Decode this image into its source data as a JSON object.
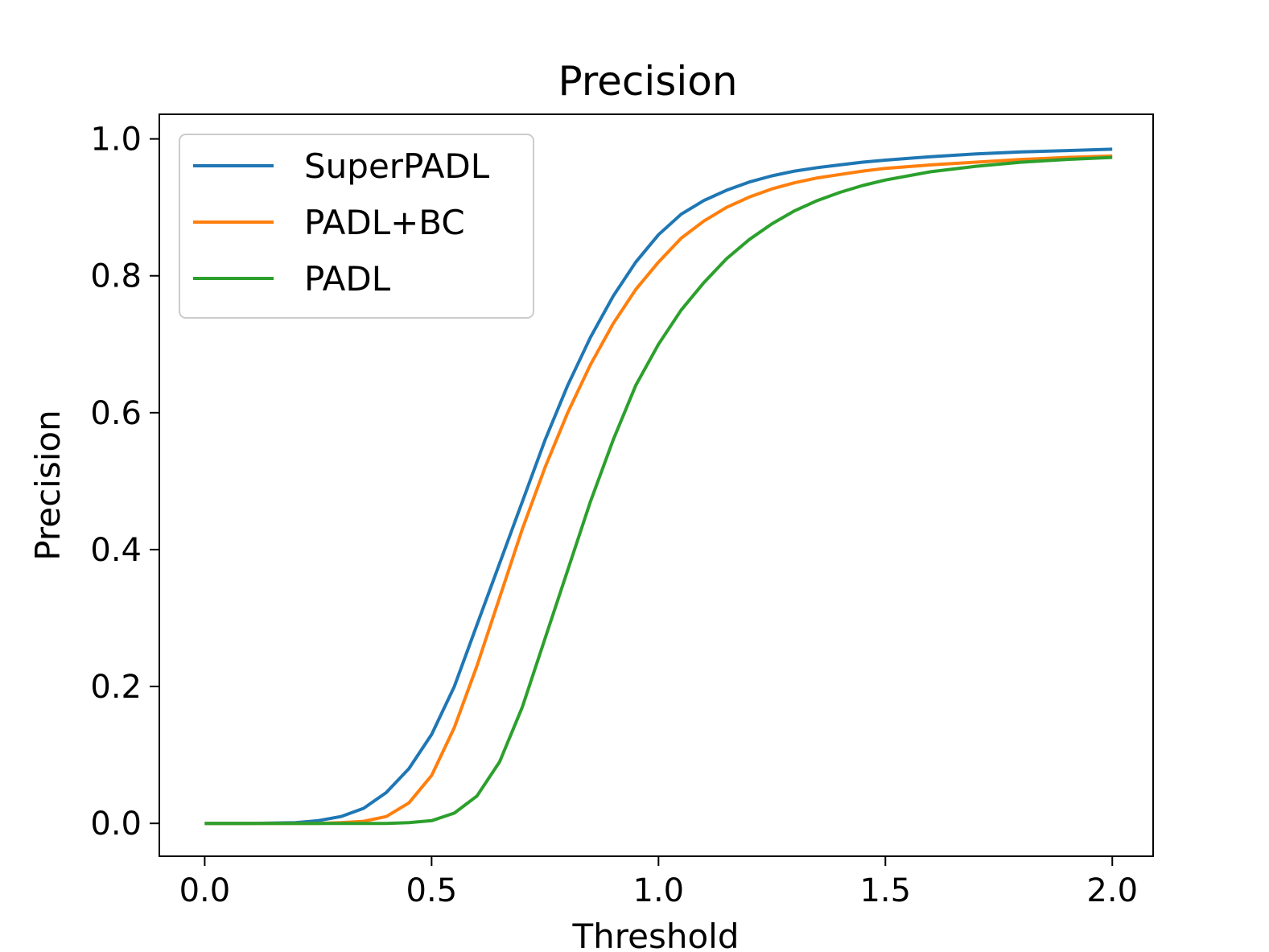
{
  "chart_data": {
    "type": "line",
    "title": "Precision",
    "xlabel": "Threshold",
    "ylabel": "Precision",
    "xlim": [
      -0.1,
      2.09
    ],
    "ylim": [
      -0.048,
      1.036
    ],
    "xticks": [
      0.0,
      0.5,
      1.0,
      1.5,
      2.0
    ],
    "xtick_labels": [
      "0.0",
      "0.5",
      "1.0",
      "1.5",
      "2.0"
    ],
    "yticks": [
      0.0,
      0.2,
      0.4,
      0.6,
      0.8,
      1.0
    ],
    "ytick_labels": [
      "0.0",
      "0.2",
      "0.4",
      "0.6",
      "0.8",
      "1.0"
    ],
    "grid": false,
    "legend_position": "top-left",
    "x": [
      0.0,
      0.1,
      0.2,
      0.25,
      0.3,
      0.35,
      0.4,
      0.45,
      0.5,
      0.55,
      0.6,
      0.65,
      0.7,
      0.75,
      0.8,
      0.85,
      0.9,
      0.95,
      1.0,
      1.05,
      1.1,
      1.15,
      1.2,
      1.25,
      1.3,
      1.35,
      1.4,
      1.45,
      1.5,
      1.6,
      1.7,
      1.8,
      1.9,
      2.0
    ],
    "series": [
      {
        "name": "SuperPADL",
        "color": "#1f77b4",
        "values": [
          0.0,
          0.0,
          0.001,
          0.004,
          0.01,
          0.022,
          0.045,
          0.08,
          0.13,
          0.2,
          0.29,
          0.38,
          0.47,
          0.56,
          0.64,
          0.71,
          0.77,
          0.82,
          0.86,
          0.89,
          0.91,
          0.925,
          0.937,
          0.946,
          0.953,
          0.958,
          0.962,
          0.966,
          0.969,
          0.974,
          0.978,
          0.981,
          0.983,
          0.985
        ]
      },
      {
        "name": "PADL+BC",
        "color": "#ff7f0e",
        "values": [
          0.0,
          0.0,
          0.0,
          0.0,
          0.001,
          0.003,
          0.01,
          0.03,
          0.07,
          0.14,
          0.23,
          0.33,
          0.43,
          0.52,
          0.6,
          0.67,
          0.73,
          0.78,
          0.82,
          0.855,
          0.88,
          0.9,
          0.915,
          0.927,
          0.936,
          0.943,
          0.948,
          0.953,
          0.957,
          0.962,
          0.966,
          0.97,
          0.973,
          0.975
        ]
      },
      {
        "name": "PADL",
        "color": "#2ca02c",
        "values": [
          0.0,
          0.0,
          0.0,
          0.0,
          0.0,
          0.0,
          0.0,
          0.001,
          0.004,
          0.015,
          0.04,
          0.09,
          0.17,
          0.27,
          0.37,
          0.47,
          0.56,
          0.64,
          0.7,
          0.75,
          0.79,
          0.825,
          0.853,
          0.876,
          0.895,
          0.91,
          0.922,
          0.932,
          0.94,
          0.952,
          0.96,
          0.966,
          0.97,
          0.973
        ]
      }
    ]
  }
}
